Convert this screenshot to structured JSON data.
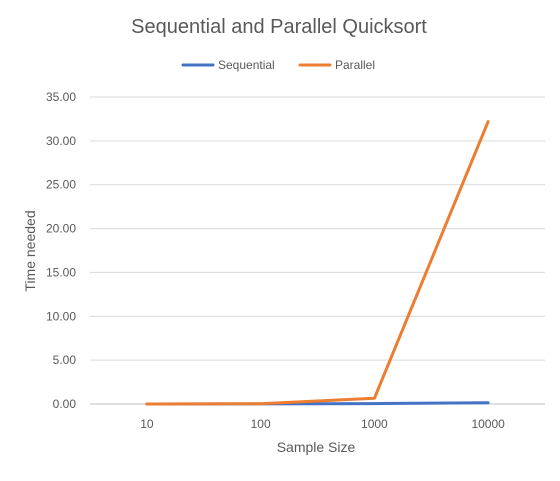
{
  "chart_data": {
    "type": "line",
    "title": "Sequential and Parallel Quicksort",
    "xlabel": "Sample Size",
    "ylabel": "Time needed",
    "categories": [
      "10",
      "100",
      "1000",
      "10000"
    ],
    "series": [
      {
        "name": "Sequential",
        "color": "#4472C4",
        "values": [
          0.0,
          0.01,
          0.05,
          0.15
        ]
      },
      {
        "name": "Parallel",
        "color": "#ED7D31",
        "values": [
          0.0,
          0.02,
          0.65,
          32.2
        ]
      }
    ],
    "ylim": [
      0,
      35
    ],
    "yticks": [
      "0.00",
      "5.00",
      "10.00",
      "15.00",
      "20.00",
      "25.00",
      "30.00",
      "35.00"
    ],
    "grid": true,
    "legend_position": "top"
  }
}
